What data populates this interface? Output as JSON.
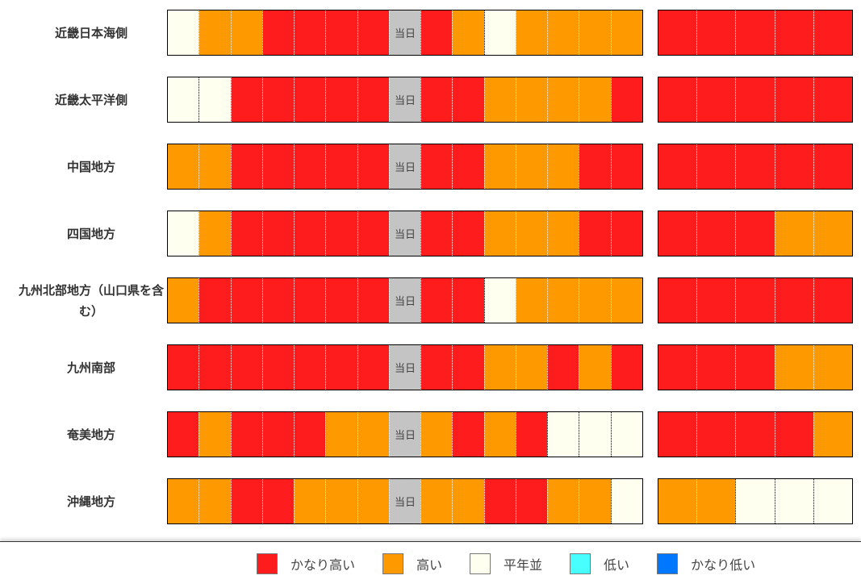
{
  "chart_data": {
    "type": "heatmap",
    "today_label": "当日",
    "colors": {
      "R": "#ff1c1c",
      "O": "#ff9900",
      "W": "#fffff0",
      "T": "#c4c4c4",
      "L": "#47ffff",
      "VL": "#0077ff"
    },
    "legend": [
      {
        "key": "R",
        "label": "かなり高い"
      },
      {
        "key": "O",
        "label": "高い"
      },
      {
        "key": "W",
        "label": "平年並"
      },
      {
        "key": "L",
        "label": "低い"
      },
      {
        "key": "VL",
        "label": "かなり低い"
      }
    ],
    "rows": [
      {
        "label": "近畿日本海側",
        "left": [
          "W",
          "O",
          "O",
          "R",
          "R",
          "R",
          "R",
          "T",
          "R",
          "O",
          "W",
          "O",
          "O",
          "O",
          "O"
        ],
        "right": [
          "R",
          "R",
          "R",
          "R",
          "R"
        ]
      },
      {
        "label": "近畿太平洋側",
        "left": [
          "W",
          "W",
          "R",
          "R",
          "R",
          "R",
          "R",
          "T",
          "R",
          "R",
          "O",
          "O",
          "O",
          "O",
          "R"
        ],
        "right": [
          "R",
          "R",
          "R",
          "R",
          "R"
        ]
      },
      {
        "label": "中国地方",
        "left": [
          "O",
          "O",
          "R",
          "R",
          "R",
          "R",
          "R",
          "T",
          "R",
          "R",
          "O",
          "O",
          "O",
          "R",
          "R"
        ],
        "right": [
          "R",
          "R",
          "R",
          "R",
          "R"
        ]
      },
      {
        "label": "四国地方",
        "left": [
          "W",
          "O",
          "R",
          "R",
          "R",
          "R",
          "R",
          "T",
          "R",
          "R",
          "O",
          "O",
          "O",
          "R",
          "R"
        ],
        "right": [
          "R",
          "R",
          "R",
          "O",
          "O"
        ]
      },
      {
        "label": "九州北部地方（山口県を含む）",
        "left": [
          "O",
          "R",
          "R",
          "R",
          "R",
          "R",
          "R",
          "T",
          "R",
          "R",
          "W",
          "O",
          "O",
          "O",
          "O"
        ],
        "right": [
          "R",
          "R",
          "R",
          "R",
          "R"
        ]
      },
      {
        "label": "九州南部",
        "left": [
          "R",
          "R",
          "R",
          "R",
          "R",
          "R",
          "R",
          "T",
          "R",
          "R",
          "O",
          "O",
          "R",
          "O",
          "R"
        ],
        "right": [
          "R",
          "R",
          "R",
          "O",
          "O"
        ]
      },
      {
        "label": "奄美地方",
        "left": [
          "R",
          "O",
          "R",
          "R",
          "R",
          "O",
          "O",
          "T",
          "O",
          "R",
          "O",
          "R",
          "W",
          "W",
          "W"
        ],
        "right": [
          "R",
          "R",
          "R",
          "R",
          "O"
        ]
      },
      {
        "label": "沖縄地方",
        "left": [
          "O",
          "O",
          "R",
          "R",
          "O",
          "O",
          "O",
          "T",
          "O",
          "O",
          "R",
          "R",
          "O",
          "O",
          "W"
        ],
        "right": [
          "O",
          "O",
          "W",
          "W",
          "W"
        ]
      }
    ]
  }
}
